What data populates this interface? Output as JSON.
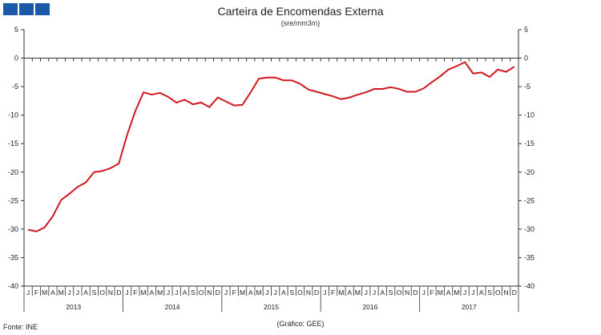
{
  "chart_data": {
    "type": "line",
    "title": "Carteira de Encomendas Externa",
    "subtitle": "(sre/mm3m)",
    "ylim": [
      -40,
      5
    ],
    "y_ticks": [
      5,
      0,
      -5,
      -10,
      -15,
      -20,
      -25,
      -30,
      -35,
      -40
    ],
    "month_labels": [
      "J",
      "F",
      "M",
      "A",
      "M",
      "J",
      "J",
      "A",
      "S",
      "O",
      "N",
      "D"
    ],
    "years": [
      "2013",
      "2014",
      "2015",
      "2016",
      "2017"
    ],
    "line_color": "#d0181e",
    "grid": false,
    "series": [
      {
        "values": [
          -30.1,
          -30.4,
          -29.7,
          -27.7,
          -24.9,
          -23.8,
          -22.6,
          -21.8,
          -20.0,
          -19.8,
          -19.3,
          -18.5,
          -13.5,
          -9.3,
          -6.0,
          -6.4,
          -6.1,
          -6.8,
          -7.8,
          -7.3,
          -8.1,
          -7.8,
          -8.6,
          -6.9,
          -7.6,
          -8.3,
          -8.2,
          -6.0,
          -3.6,
          -3.4,
          -3.4,
          -3.9,
          -3.9,
          -4.5,
          -5.5,
          -5.9,
          -6.3,
          -6.7,
          -7.2,
          -6.9,
          -6.4,
          -6.0,
          -5.4,
          -5.4,
          -5.1,
          -5.4,
          -5.9,
          -5.9,
          -5.3,
          -4.2,
          -3.2,
          -2.0,
          -1.4,
          -0.7,
          -2.7,
          -2.5,
          -3.3,
          -2.0,
          -2.4,
          -1.5
        ]
      }
    ]
  },
  "footer": {
    "source": "Fonte:  INE",
    "credit": "(Gráfico:  GEE)"
  },
  "logo": {
    "color": "#1a5aa8"
  }
}
